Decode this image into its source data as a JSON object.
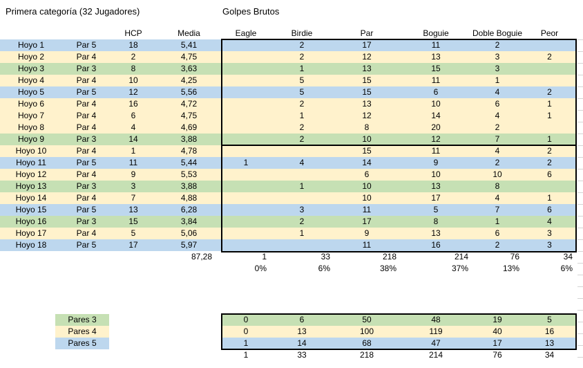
{
  "titles": {
    "left": "Primera categoría (32 Jugadores)",
    "right": "Golpes Brutos"
  },
  "headers": {
    "hcp": "HCP",
    "media": "Media",
    "eagle": "Eagle",
    "birdie": "Birdie",
    "par": "Par",
    "boguie": "Boguie",
    "doble_boguie": "Doble Boguie",
    "peor": "Peor"
  },
  "holes": [
    {
      "hole": "Hoyo 1",
      "par_label": "Par 5",
      "par": 5,
      "hcp": "18",
      "media": "5,41",
      "counts": [
        "",
        "2",
        "17",
        "11",
        "2",
        ""
      ]
    },
    {
      "hole": "Hoyo 2",
      "par_label": "Par 4",
      "par": 4,
      "hcp": "2",
      "media": "4,75",
      "counts": [
        "",
        "2",
        "12",
        "13",
        "3",
        "2"
      ]
    },
    {
      "hole": "Hoyo 3",
      "par_label": "Par 3",
      "par": 3,
      "hcp": "8",
      "media": "3,63",
      "counts": [
        "",
        "1",
        "13",
        "15",
        "3",
        ""
      ]
    },
    {
      "hole": "Hoyo 4",
      "par_label": "Par 4",
      "par": 4,
      "hcp": "10",
      "media": "4,25",
      "counts": [
        "",
        "5",
        "15",
        "11",
        "1",
        ""
      ]
    },
    {
      "hole": "Hoyo 5",
      "par_label": "Par 5",
      "par": 5,
      "hcp": "12",
      "media": "5,56",
      "counts": [
        "",
        "5",
        "15",
        "6",
        "4",
        "2"
      ]
    },
    {
      "hole": "Hoyo 6",
      "par_label": "Par 4",
      "par": 4,
      "hcp": "16",
      "media": "4,72",
      "counts": [
        "",
        "2",
        "13",
        "10",
        "6",
        "1"
      ]
    },
    {
      "hole": "Hoyo 7",
      "par_label": "Par 4",
      "par": 4,
      "hcp": "6",
      "media": "4,75",
      "counts": [
        "",
        "1",
        "12",
        "14",
        "4",
        "1"
      ]
    },
    {
      "hole": "Hoyo 8",
      "par_label": "Par 4",
      "par": 4,
      "hcp": "4",
      "media": "4,69",
      "counts": [
        "",
        "2",
        "8",
        "20",
        "2",
        ""
      ]
    },
    {
      "hole": "Hoyo 9",
      "par_label": "Par 3",
      "par": 3,
      "hcp": "14",
      "media": "3,88",
      "counts": [
        "",
        "2",
        "10",
        "12",
        "7",
        "1"
      ]
    },
    {
      "hole": "Hoyo 10",
      "par_label": "Par 4",
      "par": 4,
      "hcp": "1",
      "media": "4,78",
      "counts": [
        "",
        "",
        "15",
        "11",
        "4",
        "2"
      ]
    },
    {
      "hole": "Hoyo 11",
      "par_label": "Par 5",
      "par": 5,
      "hcp": "11",
      "media": "5,44",
      "counts": [
        "1",
        "4",
        "14",
        "9",
        "2",
        "2"
      ]
    },
    {
      "hole": "Hoyo 12",
      "par_label": "Par 4",
      "par": 4,
      "hcp": "9",
      "media": "5,53",
      "counts": [
        "",
        "",
        "6",
        "10",
        "10",
        "6"
      ]
    },
    {
      "hole": "Hoyo 13",
      "par_label": "Par 3",
      "par": 3,
      "hcp": "3",
      "media": "3,88",
      "counts": [
        "",
        "1",
        "10",
        "13",
        "8",
        ""
      ]
    },
    {
      "hole": "Hoyo 14",
      "par_label": "Par 4",
      "par": 4,
      "hcp": "7",
      "media": "4,88",
      "counts": [
        "",
        "",
        "10",
        "17",
        "4",
        "1"
      ]
    },
    {
      "hole": "Hoyo 15",
      "par_label": "Par 5",
      "par": 5,
      "hcp": "13",
      "media": "6,28",
      "counts": [
        "",
        "3",
        "11",
        "5",
        "7",
        "6"
      ]
    },
    {
      "hole": "Hoyo 16",
      "par_label": "Par 3",
      "par": 3,
      "hcp": "15",
      "media": "3,84",
      "counts": [
        "",
        "2",
        "17",
        "8",
        "1",
        "4"
      ]
    },
    {
      "hole": "Hoyo 17",
      "par_label": "Par 4",
      "par": 4,
      "hcp": "5",
      "media": "5,06",
      "counts": [
        "",
        "1",
        "9",
        "13",
        "6",
        "3"
      ]
    },
    {
      "hole": "Hoyo 18",
      "par_label": "Par 5",
      "par": 5,
      "hcp": "17",
      "media": "5,97",
      "counts": [
        "",
        "",
        "11",
        "16",
        "2",
        "3"
      ]
    }
  ],
  "totals_row": {
    "media_total": "87,28",
    "counts": [
      "1",
      "33",
      "218",
      "214",
      "76",
      "34"
    ]
  },
  "percent_row": [
    "0%",
    "6%",
    "38%",
    "37%",
    "13%",
    "6%"
  ],
  "legend": [
    {
      "label": "Pares 3",
      "par": 3
    },
    {
      "label": "Pares 4",
      "par": 4
    },
    {
      "label": "Pares 5",
      "par": 5
    }
  ],
  "summary": {
    "rows": [
      {
        "par": 3,
        "counts": [
          "0",
          "6",
          "50",
          "48",
          "19",
          "5"
        ]
      },
      {
        "par": 4,
        "counts": [
          "0",
          "13",
          "100",
          "119",
          "40",
          "16"
        ]
      },
      {
        "par": 5,
        "counts": [
          "1",
          "14",
          "68",
          "47",
          "17",
          "13"
        ]
      }
    ],
    "totals": [
      "1",
      "33",
      "218",
      "214",
      "76",
      "34"
    ]
  },
  "colors": {
    "par3": "#C6E0B4",
    "par4": "#FFF2CC",
    "par5": "#BDD7EE",
    "border": "#000000",
    "gridline": "#D4D4D4"
  }
}
